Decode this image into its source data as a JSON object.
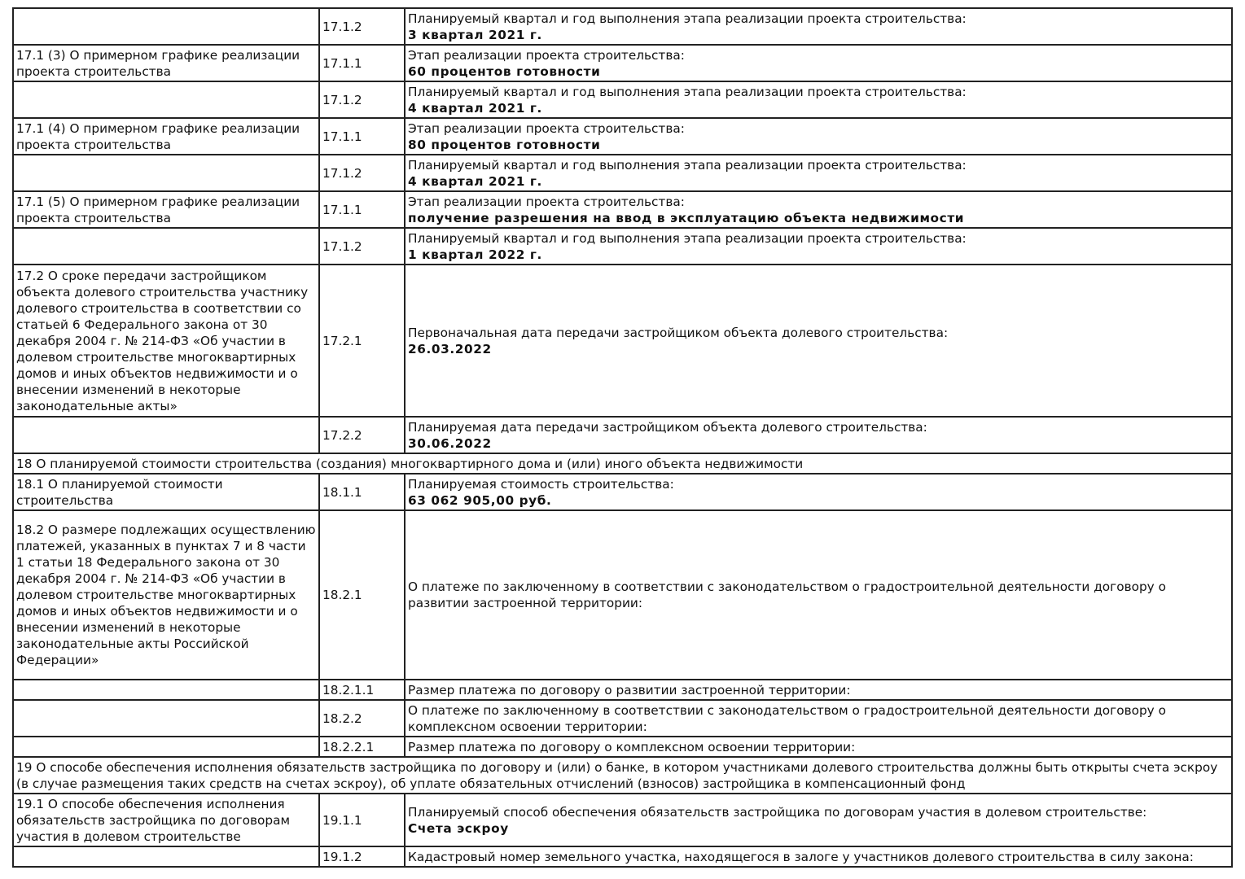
{
  "rows": [
    {
      "type": "row",
      "c1": "",
      "c2": "17.1.2",
      "label": "Планируемый квартал и год выполнения этапа реализации проекта строительства:",
      "value": "3 квартал 2021 г."
    },
    {
      "type": "row",
      "c1": "17.1 (3) О примерном графике реализации проекта строительства",
      "c2": "17.1.1",
      "label": "Этап реализации проекта строительства:",
      "value": "60 процентов готовности"
    },
    {
      "type": "row",
      "c1": "",
      "c2": "17.1.2",
      "label": "Планируемый квартал и год выполнения этапа реализации проекта строительства:",
      "value": "4 квартал 2021 г."
    },
    {
      "type": "row",
      "c1": "17.1 (4) О примерном графике реализации проекта строительства",
      "c2": "17.1.1",
      "label": "Этап реализации проекта строительства:",
      "value": "80 процентов готовности"
    },
    {
      "type": "row",
      "c1": "",
      "c2": "17.1.2",
      "label": "Планируемый квартал и год выполнения этапа реализации проекта строительства:",
      "value": "4 квартал 2021 г."
    },
    {
      "type": "row",
      "c1": "17.1 (5) О примерном графике реализации проекта строительства",
      "c2": "17.1.1",
      "label": "Этап реализации проекта строительства:",
      "value": "получение разрешения на ввод в эксплуатацию объекта недвижимости"
    },
    {
      "type": "row",
      "c1": "",
      "c2": "17.1.2",
      "label": "Планируемый квартал и год выполнения этапа реализации проекта строительства:",
      "value": "1 квартал 2022 г."
    },
    {
      "type": "row",
      "c1": "17.2 О сроке передачи застройщиком объекта долевого строительства участнику долевого строительства в соответствии со статьей 6 Федерального закона от 30 декабря 2004 г. № 214-ФЗ «Об участии в долевом строительстве многоквартирных домов и иных объектов недвижимости и о внесении изменений в некоторые законодательные акты»",
      "c2": "17.2.1",
      "label": "Первоначальная дата передачи застройщиком объекта долевого строительства:",
      "value": "26.03.2022"
    },
    {
      "type": "row",
      "c1": "",
      "c2": "17.2.2",
      "label": "Планируемая дата передачи застройщиком объекта долевого строительства:",
      "value": "30.06.2022"
    },
    {
      "type": "section",
      "text": "18 О планируемой стоимости строительства (создания) многоквартирного дома и (или) иного объекта недвижимости"
    },
    {
      "type": "row",
      "c1": "18.1 О планируемой стоимости строительства",
      "c2": "18.1.1",
      "label": "Планируемая стоимость строительства:",
      "value": "63 062 905,00 руб."
    },
    {
      "type": "row",
      "c1": "18.2 О размере подлежащих осуществлению платежей, указанных в пунктах 7 и 8 части 1 статьи 18 Федерального закона от 30 декабря 2004 г. № 214-ФЗ «Об участии в долевом строительстве многоквартирных домов и иных объектов недвижимости и о внесении изменений в некоторые законодательные акты Российской Федерации»",
      "c2": "18.2.1",
      "label": "О платеже по заключенному в соответствии с законодательством о градостроительной деятельности договору о развитии застроенной территории:",
      "value": ""
    },
    {
      "type": "row",
      "c1": "",
      "c2": "18.2.1.1",
      "label": "Размер платежа по договору о развитии застроенной территории:",
      "value": ""
    },
    {
      "type": "row",
      "c1": "",
      "c2": "18.2.2",
      "label": "О платеже по заключенному в соответствии с законодательством о градостроительной деятельности договору о комплексном освоении территории:",
      "value": ""
    },
    {
      "type": "row",
      "c1": "",
      "c2": "18.2.2.1",
      "label": "Размер платежа по договору о комплексном освоении территории:",
      "value": ""
    },
    {
      "type": "section",
      "text": "19 О способе обеспечения исполнения обязательств застройщика по договору и (или) о банке, в котором участниками долевого строительства должны быть открыты счета эскроу (в случае размещения таких средств на счетах эскроу), об уплате обязательных отчислений (взносов) застройщика в компенсационный фонд"
    },
    {
      "type": "row",
      "c1": "19.1 О способе обеспечения исполнения обязательств застройщика по договорам участия в долевом строительстве",
      "c2": "19.1.1",
      "label": "Планируемый способ обеспечения обязательств застройщика по договорам участия в долевом строительстве:",
      "value": "Счета эскроу"
    },
    {
      "type": "row",
      "c1": "",
      "c2": "19.1.2",
      "label": "Кадастровый номер земельного участка, находящегося в залоге у участников долевого строительства в силу закона:",
      "value": ""
    }
  ]
}
